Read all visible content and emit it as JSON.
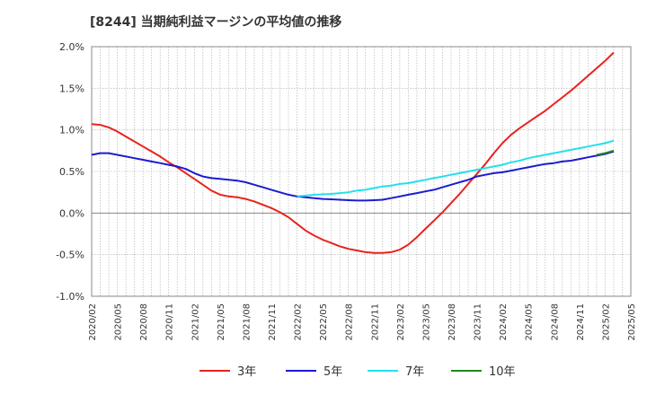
{
  "chart_data": {
    "type": "line",
    "title": "[8244]  当期純利益マージンの平均値の推移",
    "xlabel": "",
    "ylabel": "",
    "ylim": [
      -1.0,
      2.0
    ],
    "y_ticks": [
      "2.0%",
      "1.5%",
      "1.0%",
      "0.5%",
      "0.0%",
      "-0.5%",
      "-1.0%"
    ],
    "y_tick_values": [
      2.0,
      1.5,
      1.0,
      0.5,
      0.0,
      -0.5,
      -1.0
    ],
    "x_ticks": [
      "2020/02",
      "2020/05",
      "2020/08",
      "2020/11",
      "2021/02",
      "2021/05",
      "2021/08",
      "2021/11",
      "2022/02",
      "2022/05",
      "2022/08",
      "2022/11",
      "2023/02",
      "2023/05",
      "2023/08",
      "2023/11",
      "2024/02",
      "2024/05",
      "2024/08",
      "2024/11",
      "2025/02",
      "2025/05"
    ],
    "grid": true,
    "legend_position": "bottom",
    "series": [
      {
        "name": "3年",
        "color": "#e8231d",
        "points": [
          [
            "2020/02",
            1.07
          ],
          [
            "2020/03",
            1.06
          ],
          [
            "2020/04",
            1.03
          ],
          [
            "2020/05",
            0.98
          ],
          [
            "2020/06",
            0.92
          ],
          [
            "2020/07",
            0.86
          ],
          [
            "2020/08",
            0.8
          ],
          [
            "2020/09",
            0.74
          ],
          [
            "2020/10",
            0.68
          ],
          [
            "2020/11",
            0.61
          ],
          [
            "2020/12",
            0.55
          ],
          [
            "2021/01",
            0.48
          ],
          [
            "2021/02",
            0.41
          ],
          [
            "2021/03",
            0.34
          ],
          [
            "2021/04",
            0.27
          ],
          [
            "2021/05",
            0.22
          ],
          [
            "2021/06",
            0.2
          ],
          [
            "2021/07",
            0.19
          ],
          [
            "2021/08",
            0.17
          ],
          [
            "2021/09",
            0.14
          ],
          [
            "2021/10",
            0.1
          ],
          [
            "2021/11",
            0.06
          ],
          [
            "2021/12",
            0.01
          ],
          [
            "2022/01",
            -0.05
          ],
          [
            "2022/02",
            -0.13
          ],
          [
            "2022/03",
            -0.21
          ],
          [
            "2022/04",
            -0.27
          ],
          [
            "2022/05",
            -0.32
          ],
          [
            "2022/06",
            -0.36
          ],
          [
            "2022/07",
            -0.4
          ],
          [
            "2022/08",
            -0.43
          ],
          [
            "2022/09",
            -0.45
          ],
          [
            "2022/10",
            -0.47
          ],
          [
            "2022/11",
            -0.48
          ],
          [
            "2022/12",
            -0.48
          ],
          [
            "2023/01",
            -0.47
          ],
          [
            "2023/02",
            -0.44
          ],
          [
            "2023/03",
            -0.38
          ],
          [
            "2023/04",
            -0.29
          ],
          [
            "2023/05",
            -0.19
          ],
          [
            "2023/06",
            -0.09
          ],
          [
            "2023/07",
            0.01
          ],
          [
            "2023/08",
            0.12
          ],
          [
            "2023/09",
            0.23
          ],
          [
            "2023/10",
            0.35
          ],
          [
            "2023/11",
            0.47
          ],
          [
            "2023/12",
            0.59
          ],
          [
            "2024/01",
            0.72
          ],
          [
            "2024/02",
            0.84
          ],
          [
            "2024/03",
            0.94
          ],
          [
            "2024/04",
            1.02
          ],
          [
            "2024/05",
            1.09
          ],
          [
            "2024/06",
            1.16
          ],
          [
            "2024/07",
            1.23
          ],
          [
            "2024/08",
            1.31
          ],
          [
            "2024/09",
            1.39
          ],
          [
            "2024/10",
            1.47
          ],
          [
            "2024/11",
            1.56
          ],
          [
            "2024/12",
            1.65
          ],
          [
            "2025/01",
            1.74
          ],
          [
            "2025/02",
            1.83
          ],
          [
            "2025/03",
            1.93
          ]
        ]
      },
      {
        "name": "5年",
        "color": "#1b1bd1",
        "points": [
          [
            "2020/02",
            0.7
          ],
          [
            "2020/03",
            0.72
          ],
          [
            "2020/04",
            0.72
          ],
          [
            "2020/05",
            0.7
          ],
          [
            "2020/06",
            0.68
          ],
          [
            "2020/07",
            0.66
          ],
          [
            "2020/08",
            0.64
          ],
          [
            "2020/09",
            0.62
          ],
          [
            "2020/10",
            0.6
          ],
          [
            "2020/11",
            0.58
          ],
          [
            "2020/12",
            0.56
          ],
          [
            "2021/01",
            0.53
          ],
          [
            "2021/02",
            0.48
          ],
          [
            "2021/03",
            0.44
          ],
          [
            "2021/04",
            0.42
          ],
          [
            "2021/05",
            0.41
          ],
          [
            "2021/06",
            0.4
          ],
          [
            "2021/07",
            0.39
          ],
          [
            "2021/08",
            0.37
          ],
          [
            "2021/09",
            0.34
          ],
          [
            "2021/10",
            0.31
          ],
          [
            "2021/11",
            0.28
          ],
          [
            "2021/12",
            0.25
          ],
          [
            "2022/01",
            0.22
          ],
          [
            "2022/02",
            0.2
          ],
          [
            "2022/03",
            0.19
          ],
          [
            "2022/04",
            0.18
          ],
          [
            "2022/05",
            0.17
          ],
          [
            "2022/06",
            0.165
          ],
          [
            "2022/07",
            0.16
          ],
          [
            "2022/08",
            0.155
          ],
          [
            "2022/09",
            0.15
          ],
          [
            "2022/10",
            0.15
          ],
          [
            "2022/11",
            0.155
          ],
          [
            "2022/12",
            0.16
          ],
          [
            "2023/01",
            0.18
          ],
          [
            "2023/02",
            0.2
          ],
          [
            "2023/03",
            0.22
          ],
          [
            "2023/04",
            0.24
          ],
          [
            "2023/05",
            0.26
          ],
          [
            "2023/06",
            0.28
          ],
          [
            "2023/07",
            0.31
          ],
          [
            "2023/08",
            0.34
          ],
          [
            "2023/09",
            0.37
          ],
          [
            "2023/10",
            0.4
          ],
          [
            "2023/11",
            0.44
          ],
          [
            "2023/12",
            0.46
          ],
          [
            "2024/01",
            0.48
          ],
          [
            "2024/02",
            0.49
          ],
          [
            "2024/03",
            0.51
          ],
          [
            "2024/04",
            0.53
          ],
          [
            "2024/05",
            0.55
          ],
          [
            "2024/06",
            0.57
          ],
          [
            "2024/07",
            0.59
          ],
          [
            "2024/08",
            0.6
          ],
          [
            "2024/09",
            0.62
          ],
          [
            "2024/10",
            0.63
          ],
          [
            "2024/11",
            0.65
          ],
          [
            "2024/12",
            0.67
          ],
          [
            "2025/01",
            0.69
          ],
          [
            "2025/02",
            0.71
          ],
          [
            "2025/03",
            0.74
          ]
        ]
      },
      {
        "name": "7年",
        "color": "#22e0ea",
        "points": [
          [
            "2022/02",
            0.2
          ],
          [
            "2022/03",
            0.21
          ],
          [
            "2022/04",
            0.22
          ],
          [
            "2022/05",
            0.225
          ],
          [
            "2022/06",
            0.23
          ],
          [
            "2022/07",
            0.24
          ],
          [
            "2022/08",
            0.25
          ],
          [
            "2022/09",
            0.27
          ],
          [
            "2022/10",
            0.28
          ],
          [
            "2022/11",
            0.3
          ],
          [
            "2022/12",
            0.32
          ],
          [
            "2023/01",
            0.33
          ],
          [
            "2023/02",
            0.35
          ],
          [
            "2023/03",
            0.36
          ],
          [
            "2023/04",
            0.38
          ],
          [
            "2023/05",
            0.4
          ],
          [
            "2023/06",
            0.42
          ],
          [
            "2023/07",
            0.44
          ],
          [
            "2023/08",
            0.46
          ],
          [
            "2023/09",
            0.48
          ],
          [
            "2023/10",
            0.5
          ],
          [
            "2023/11",
            0.52
          ],
          [
            "2023/12",
            0.54
          ],
          [
            "2024/01",
            0.56
          ],
          [
            "2024/02",
            0.58
          ],
          [
            "2024/03",
            0.61
          ],
          [
            "2024/04",
            0.63
          ],
          [
            "2024/05",
            0.66
          ],
          [
            "2024/06",
            0.68
          ],
          [
            "2024/07",
            0.7
          ],
          [
            "2024/08",
            0.72
          ],
          [
            "2024/09",
            0.74
          ],
          [
            "2024/10",
            0.76
          ],
          [
            "2024/11",
            0.78
          ],
          [
            "2024/12",
            0.8
          ],
          [
            "2025/01",
            0.82
          ],
          [
            "2025/02",
            0.84
          ],
          [
            "2025/03",
            0.87
          ]
        ]
      },
      {
        "name": "10年",
        "color": "#1e8a1e",
        "points": [
          [
            "2025/01",
            0.7
          ],
          [
            "2025/02",
            0.72
          ],
          [
            "2025/03",
            0.75
          ]
        ]
      }
    ]
  }
}
